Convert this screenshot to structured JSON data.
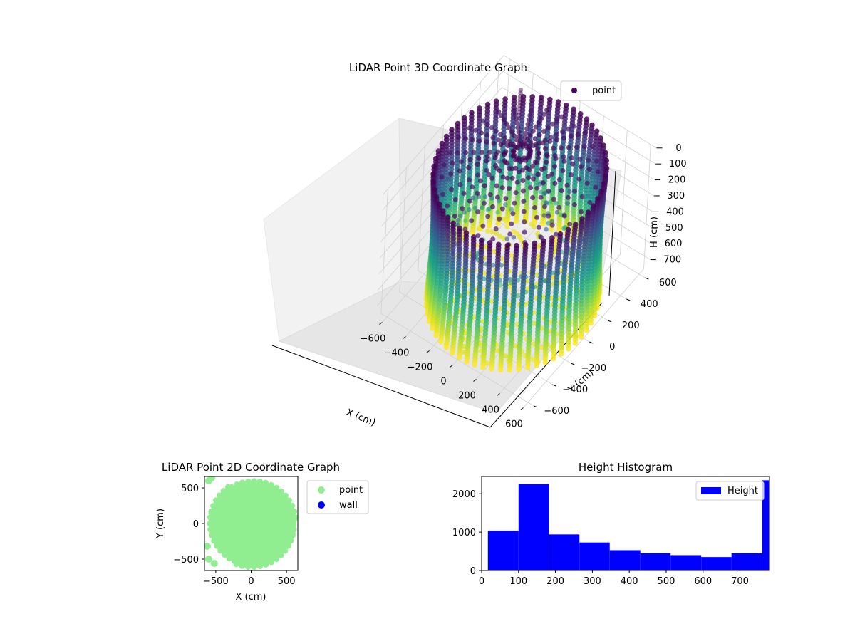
{
  "chart_data": [
    {
      "type": "scatter",
      "projection": "3d",
      "title": "LiDAR Point 3D Coordinate Graph",
      "xlabel": "X (cm)",
      "ylabel": "Y (cm)",
      "zlabel": "H (cm)",
      "xticks": [
        "−600",
        "−400",
        "−200",
        "0",
        "200",
        "400",
        "600"
      ],
      "yticks": [
        "600",
        "400",
        "200",
        "0",
        "−200",
        "−400",
        "−600"
      ],
      "zticks": [
        "0",
        "100",
        "200",
        "300",
        "400",
        "500",
        "600",
        "700"
      ],
      "xlim": [
        -650,
        650
      ],
      "ylim": [
        -650,
        650
      ],
      "zlim": [
        0,
        780
      ],
      "z_axis_inverted": true,
      "colormap": "viridis",
      "legend": {
        "entries": [
          "point"
        ],
        "placement": "top-right"
      },
      "structure": {
        "wall_radius_cm": 580,
        "wall_height_range_cm": [
          0,
          780
        ],
        "vertical_scan_lines": 60,
        "center_point": [
          -100,
          150,
          0
        ],
        "note_color": "color encodes height"
      },
      "grid": true
    },
    {
      "type": "scatter",
      "title": "LiDAR Point 2D Coordinate Graph",
      "xlabel": "X (cm)",
      "ylabel": "Y (cm)",
      "xticks": [
        "−500",
        "0",
        "500"
      ],
      "yticks": [
        "500",
        "0",
        "−500"
      ],
      "xlim": [
        -660,
        660
      ],
      "ylim": [
        -660,
        660
      ],
      "series": [
        {
          "name": "point",
          "color": "#90ee90"
        },
        {
          "name": "wall",
          "color": "#0000ff"
        }
      ],
      "legend": {
        "placement": "right-outside"
      },
      "grid": false
    },
    {
      "type": "bar",
      "subtype": "histogram",
      "title": "Height Histogram",
      "xticks": [
        "0",
        "100",
        "200",
        "300",
        "400",
        "500",
        "600",
        "700"
      ],
      "yticks": [
        "0",
        "1000",
        "2000"
      ],
      "xlim": [
        0,
        780
      ],
      "ylim": [
        0,
        2450
      ],
      "bin_edges": [
        17,
        100,
        182,
        265,
        347,
        430,
        512,
        595,
        677,
        760,
        780
      ],
      "values": [
        1040,
        2250,
        940,
        730,
        530,
        450,
        400,
        350,
        450,
        2350
      ],
      "series": [
        {
          "name": "Height",
          "color": "#0000ff"
        }
      ],
      "legend": {
        "placement": "top-right"
      },
      "grid": false
    }
  ]
}
